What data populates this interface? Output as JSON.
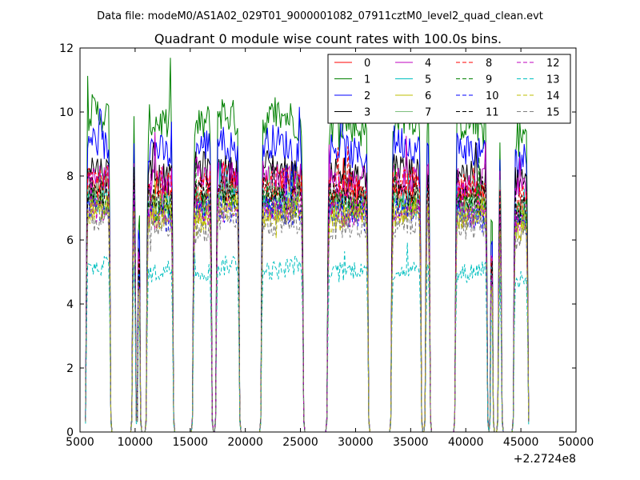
{
  "header": {
    "suptitle": "Data file: modeM0/AS1A02_029T01_9000001082_07911cztM0_level2_quad_clean.evt"
  },
  "chart_data": {
    "type": "line",
    "title": "Quadrant 0 module wise count rates with 100.0s bins.",
    "xlabel": "",
    "ylabel": "",
    "x_offset_label": "+2.2724e8",
    "xlim": [
      5000,
      50000
    ],
    "ylim": [
      0,
      12
    ],
    "xticks": [
      5000,
      10000,
      15000,
      20000,
      25000,
      30000,
      35000,
      40000,
      45000,
      50000
    ],
    "yticks": [
      0,
      2,
      4,
      6,
      8,
      10,
      12
    ],
    "grid": false,
    "legend_position": "top-right",
    "legend_columns": 4,
    "segments": [
      [
        5500,
        7800
      ],
      [
        9700,
        10100
      ],
      [
        10200,
        10500
      ],
      [
        11000,
        13500
      ],
      [
        15200,
        17000
      ],
      [
        17300,
        19500
      ],
      [
        21400,
        25300
      ],
      [
        27400,
        31200
      ],
      [
        33200,
        36000
      ],
      [
        36300,
        36800
      ],
      [
        39000,
        42000
      ],
      [
        42200,
        42500
      ],
      [
        42900,
        43300
      ],
      [
        44300,
        45700
      ]
    ],
    "segment_levels": [
      1.0,
      1.03,
      0.99,
      0.97,
      0.98,
      1.0,
      0.99,
      0.97,
      0.99,
      1.0,
      0.97,
      1.0,
      0.95,
      0.93
    ],
    "series": [
      {
        "name": "0",
        "color": "#ff0000",
        "dash": "solid",
        "level": 7.5
      },
      {
        "name": "1",
        "color": "#008000",
        "dash": "solid",
        "level": 9.8
      },
      {
        "name": "2",
        "color": "#0000ff",
        "dash": "solid",
        "level": 9.0
      },
      {
        "name": "3",
        "color": "#000000",
        "dash": "solid",
        "level": 8.3
      },
      {
        "name": "4",
        "color": "#bf00bf",
        "dash": "solid",
        "level": 8.1
      },
      {
        "name": "5",
        "color": "#00bfbf",
        "dash": "solid",
        "level": 7.3
      },
      {
        "name": "6",
        "color": "#bfbf00",
        "dash": "solid",
        "level": 7.0
      },
      {
        "name": "7",
        "color": "#7fbf7f",
        "dash": "solid",
        "level": 7.4
      },
      {
        "name": "8",
        "color": "#ff0000",
        "dash": "dashed",
        "level": 7.8
      },
      {
        "name": "9",
        "color": "#008000",
        "dash": "dashed",
        "level": 7.2
      },
      {
        "name": "10",
        "color": "#0000ff",
        "dash": "dashed",
        "level": 7.0
      },
      {
        "name": "11",
        "color": "#000000",
        "dash": "dashed",
        "level": 7.6
      },
      {
        "name": "12",
        "color": "#bf00bf",
        "dash": "dashed",
        "level": 7.1
      },
      {
        "name": "13",
        "color": "#00bfbf",
        "dash": "dashed",
        "level": 5.2
      },
      {
        "name": "14",
        "color": "#bfbf00",
        "dash": "dashed",
        "level": 6.9
      },
      {
        "name": "15",
        "color": "#808080",
        "dash": "dashed",
        "level": 6.5
      }
    ]
  }
}
